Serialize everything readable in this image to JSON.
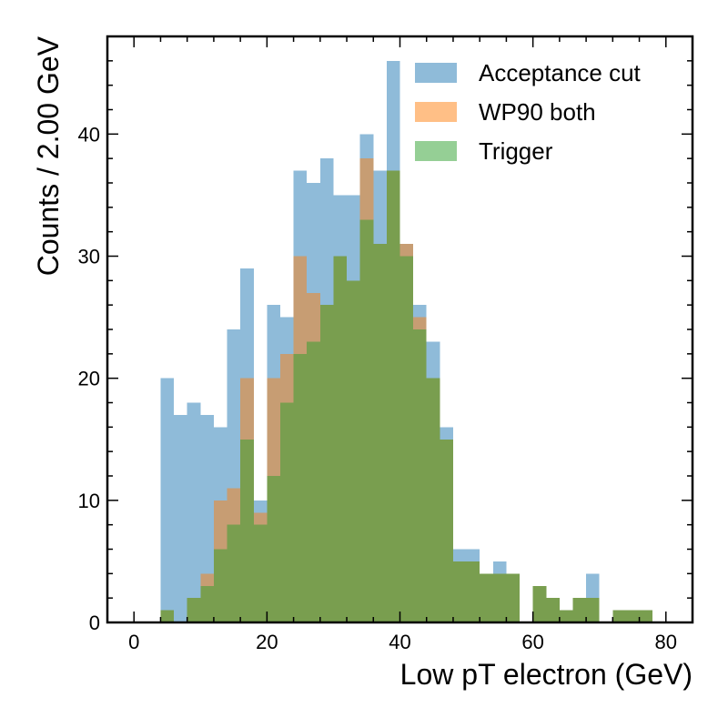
{
  "chart_data": {
    "type": "bar",
    "subtype": "histogram",
    "xlabel": "Low pT electron (GeV)",
    "ylabel": "Counts / 2.00 GeV",
    "xlim": [
      -4,
      84
    ],
    "ylim": [
      0,
      48
    ],
    "xticks": [
      0,
      20,
      40,
      60,
      80
    ],
    "yticks": [
      0,
      10,
      20,
      30,
      40
    ],
    "bin_width": 2,
    "bin_edges_start": 4,
    "legend_position": "top-right",
    "grid": false,
    "series": [
      {
        "name": "Acceptance cut",
        "color": "#1f77b4",
        "opacity": 0.5,
        "values": [
          20,
          17,
          18,
          17,
          16,
          24,
          29,
          10,
          26,
          25,
          37,
          36,
          38,
          35,
          35,
          40,
          37,
          46,
          31,
          26,
          23,
          16,
          6,
          6,
          4,
          5,
          4,
          0,
          3,
          2,
          1,
          2,
          4,
          0,
          1,
          1,
          1
        ]
      },
      {
        "name": "WP90 both",
        "color": "#ff7f0e",
        "opacity": 0.5,
        "values": [
          1,
          0,
          2,
          4,
          10,
          11,
          20,
          9,
          20,
          22,
          30,
          27,
          26,
          30,
          28,
          38,
          31,
          37,
          31,
          25,
          20,
          15,
          5,
          5,
          4,
          4,
          4,
          0,
          3,
          2,
          1,
          2,
          2,
          0,
          1,
          1,
          1
        ]
      },
      {
        "name": "Trigger",
        "color": "#2ca02c",
        "opacity": 0.5,
        "values": [
          1,
          0,
          2,
          3,
          6,
          8,
          15,
          8,
          12,
          18,
          22,
          23,
          26,
          30,
          28,
          33,
          31,
          37,
          30,
          24,
          20,
          15,
          5,
          5,
          4,
          4,
          4,
          0,
          3,
          2,
          1,
          2,
          2,
          0,
          1,
          1,
          1
        ]
      }
    ]
  }
}
